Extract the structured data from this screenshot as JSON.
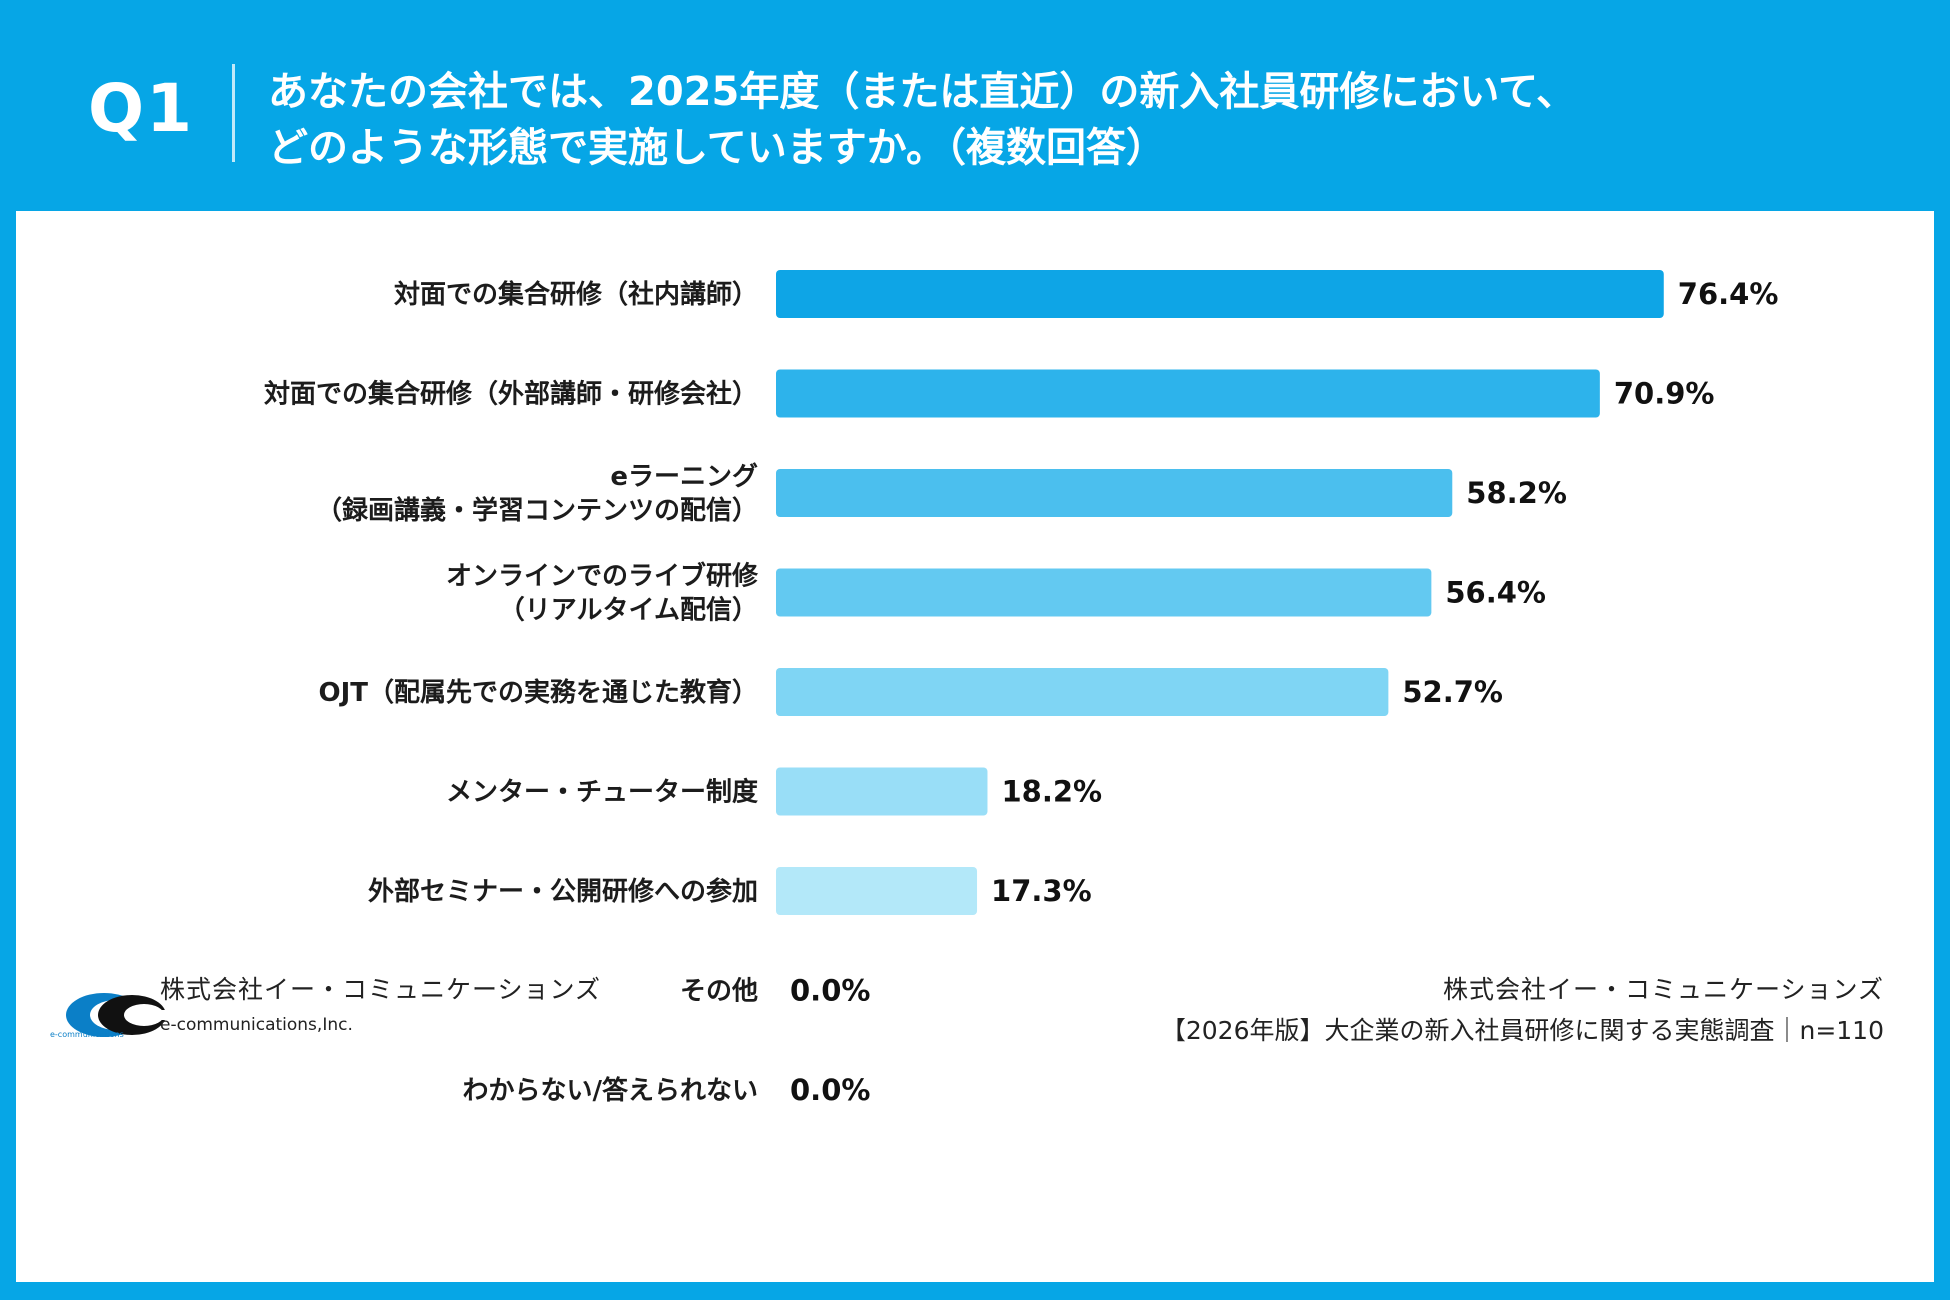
{
  "header": {
    "question_number": "Q1",
    "question_line1": "あなたの会社では、2025年度（または直近）の新入社員研修において、",
    "question_line2": "どのような形態で実施していますか。（複数回答）"
  },
  "chart_data": {
    "type": "bar",
    "orientation": "horizontal",
    "categories": [
      [
        "対面での集合研修（社内講師）"
      ],
      [
        "対面での集合研修（外部講師・研修会社）"
      ],
      [
        "eラーニング",
        "（録画講義・学習コンテンツの配信）"
      ],
      [
        "オンラインでのライブ研修",
        "（リアルタイム配信）"
      ],
      [
        "OJT（配属先での実務を通じた教育）"
      ],
      [
        "メンター・チューター制度"
      ],
      [
        "外部セミナー・公開研修への参加"
      ],
      [
        "その他"
      ],
      [
        "わからない/答えられない"
      ]
    ],
    "values": [
      76.4,
      70.9,
      58.2,
      56.4,
      52.7,
      18.2,
      17.3,
      0.0,
      0.0
    ],
    "value_labels": [
      "76.4%",
      "70.9%",
      "58.2%",
      "56.4%",
      "52.7%",
      "18.2%",
      "17.3%",
      "0.0%",
      "0.0%"
    ],
    "unit": "%",
    "xlim": [
      0,
      100
    ],
    "bar_colors": [
      "#0ea5e6",
      "#2db3eb",
      "#4bbfee",
      "#63c9f1",
      "#7fd5f4",
      "#99def7",
      "#b3e8f9",
      "#c8eefb",
      "#d6f2fc"
    ],
    "grid": false,
    "legend": "none"
  },
  "footer": {
    "logo_icon": "e-communications-logo-icon",
    "logo_name_jp": "株式会社イー・コミュニケーションズ",
    "logo_name_en": "e-communications,Inc.",
    "logo_tiny": "e-communications",
    "source_company": "株式会社イー・コミュニケーションズ",
    "source_title": "【2026年版】大企業の新入社員研修に関する実態調査｜n=110"
  },
  "colors": {
    "frame": "#06a6e6",
    "panel": "#ffffff",
    "logo_blue": "#0b7fc7"
  }
}
